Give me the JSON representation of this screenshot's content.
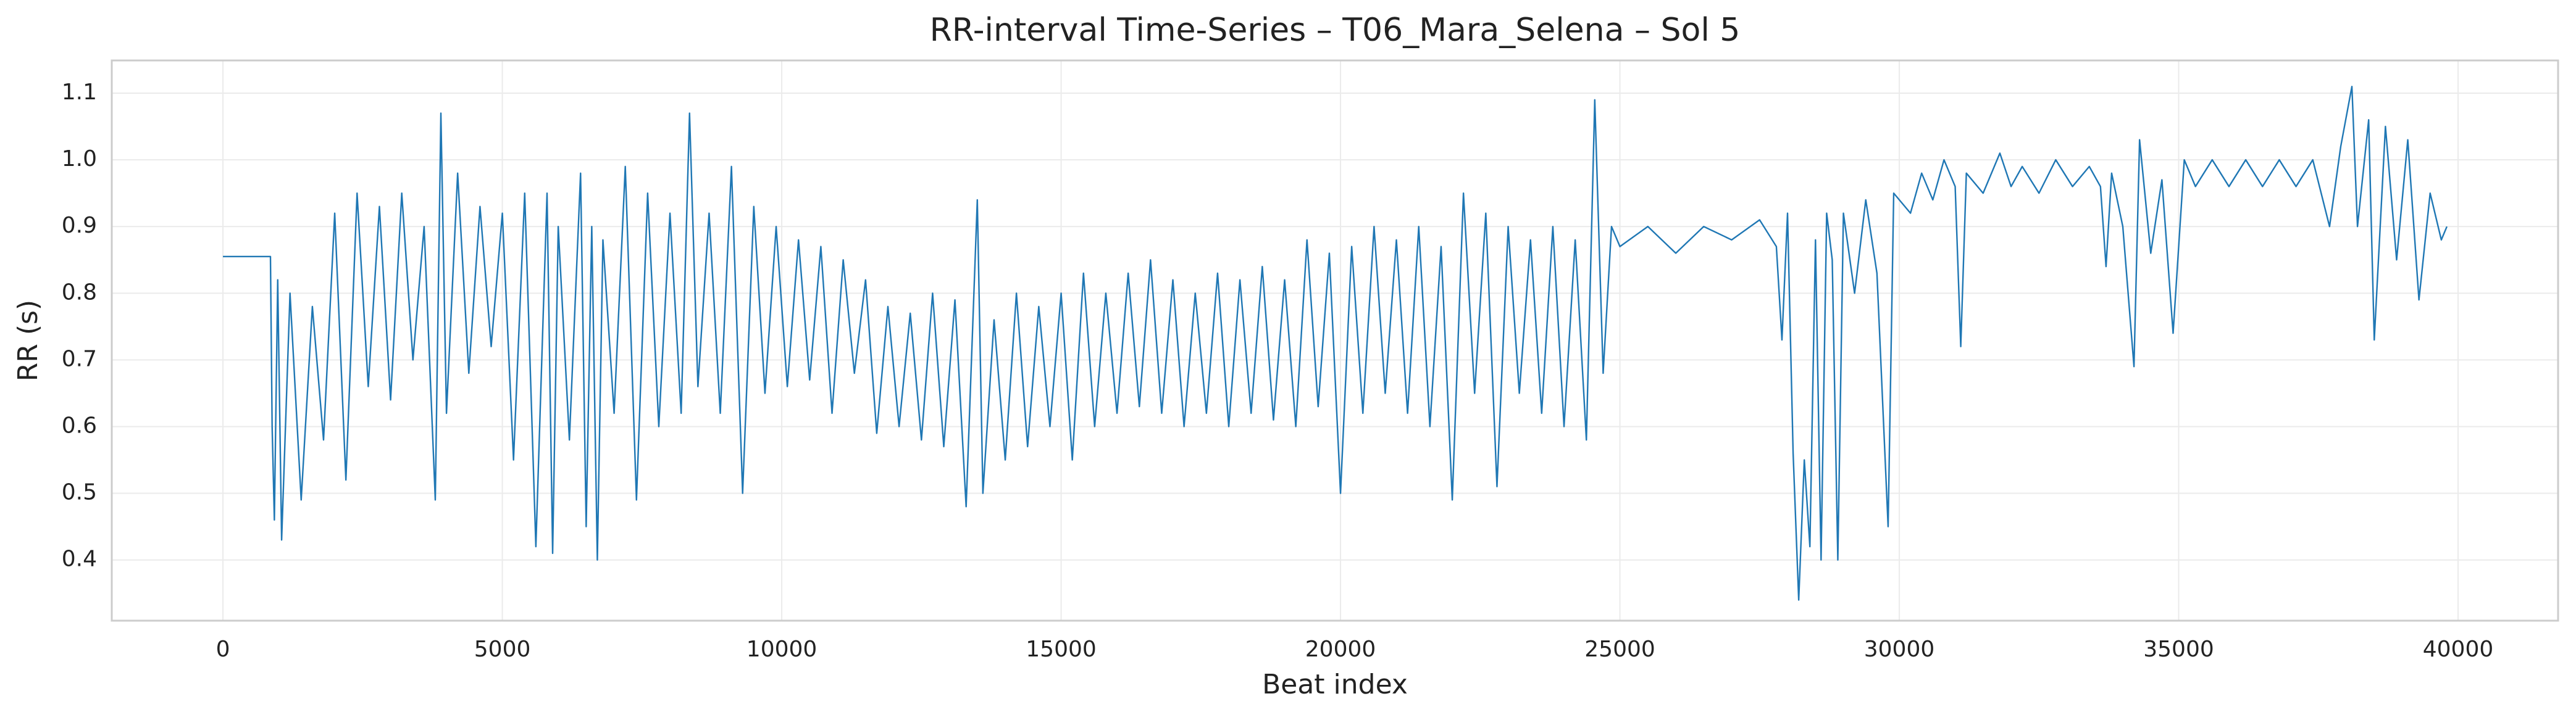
{
  "chart_data": {
    "type": "line",
    "title": "RR-interval Time-Series – T06_Mara_Selena – Sol 5",
    "xlabel": "Beat index",
    "ylabel": "RR (s)",
    "color": "#1f77b4",
    "grid": true,
    "xlim": [
      -1990,
      41790
    ],
    "ylim": [
      0.309,
      1.149
    ],
    "xticks": [
      0,
      5000,
      10000,
      15000,
      20000,
      25000,
      30000,
      35000,
      40000
    ],
    "yticks": [
      0.4,
      0.5,
      0.6,
      0.7,
      0.8,
      0.9,
      {
        "value": 1,
        "label": "1.0"
      },
      1.1
    ],
    "x": [
      0,
      850,
      880,
      920,
      980,
      1050,
      1200,
      1400,
      1600,
      1800,
      2000,
      2200,
      2400,
      2600,
      2800,
      3000,
      3200,
      3400,
      3600,
      3800,
      3900,
      4000,
      4200,
      4400,
      4600,
      4800,
      5000,
      5200,
      5400,
      5600,
      5800,
      5900,
      6000,
      6200,
      6400,
      6500,
      6600,
      6700,
      6800,
      7000,
      7200,
      7400,
      7600,
      7800,
      8000,
      8200,
      8350,
      8500,
      8700,
      8900,
      9100,
      9300,
      9500,
      9700,
      9900,
      10100,
      10300,
      10500,
      10700,
      10900,
      11100,
      11300,
      11500,
      11700,
      11900,
      12100,
      12300,
      12500,
      12700,
      12900,
      13100,
      13300,
      13500,
      13600,
      13800,
      14000,
      14200,
      14400,
      14600,
      14800,
      15000,
      15200,
      15400,
      15600,
      15800,
      16000,
      16200,
      16400,
      16600,
      16800,
      17000,
      17200,
      17400,
      17600,
      17800,
      18000,
      18200,
      18400,
      18600,
      18800,
      19000,
      19200,
      19400,
      19600,
      19800,
      20000,
      20200,
      20400,
      20600,
      20800,
      21000,
      21200,
      21400,
      21600,
      21800,
      22000,
      22200,
      22400,
      22600,
      22800,
      23000,
      23200,
      23400,
      23600,
      23800,
      24000,
      24200,
      24400,
      24550,
      24700,
      24850,
      25000,
      25500,
      26000,
      26500,
      27000,
      27500,
      27800,
      27900,
      28000,
      28100,
      28200,
      28300,
      28400,
      28500,
      28600,
      28700,
      28800,
      28900,
      29000,
      29200,
      29400,
      29600,
      29800,
      29900,
      30200,
      30400,
      30600,
      30800,
      31000,
      31100,
      31200,
      31500,
      31800,
      32000,
      32200,
      32500,
      32800,
      33100,
      33400,
      33600,
      33700,
      33800,
      34000,
      34200,
      34300,
      34500,
      34700,
      34900,
      35100,
      35300,
      35600,
      35900,
      36200,
      36500,
      36800,
      37100,
      37400,
      37700,
      37900,
      38100,
      38200,
      38400,
      38500,
      38700,
      38900,
      39100,
      39300,
      39500,
      39700,
      39800
    ],
    "values": [
      0.855,
      0.855,
      0.6,
      0.46,
      0.82,
      0.43,
      0.8,
      0.49,
      0.78,
      0.58,
      0.92,
      0.52,
      0.95,
      0.66,
      0.93,
      0.64,
      0.95,
      0.7,
      0.9,
      0.49,
      1.07,
      0.62,
      0.98,
      0.68,
      0.93,
      0.72,
      0.92,
      0.55,
      0.95,
      0.42,
      0.95,
      0.41,
      0.9,
      0.58,
      0.98,
      0.45,
      0.9,
      0.4,
      0.88,
      0.62,
      0.99,
      0.49,
      0.95,
      0.6,
      0.92,
      0.62,
      1.07,
      0.66,
      0.92,
      0.62,
      0.99,
      0.5,
      0.93,
      0.65,
      0.9,
      0.66,
      0.88,
      0.67,
      0.87,
      0.62,
      0.85,
      0.68,
      0.82,
      0.59,
      0.78,
      0.6,
      0.77,
      0.58,
      0.8,
      0.57,
      0.79,
      0.48,
      0.94,
      0.5,
      0.76,
      0.55,
      0.8,
      0.57,
      0.78,
      0.6,
      0.8,
      0.55,
      0.83,
      0.6,
      0.8,
      0.62,
      0.83,
      0.63,
      0.85,
      0.62,
      0.82,
      0.6,
      0.8,
      0.62,
      0.83,
      0.6,
      0.82,
      0.62,
      0.84,
      0.61,
      0.82,
      0.6,
      0.88,
      0.63,
      0.86,
      0.5,
      0.87,
      0.62,
      0.9,
      0.65,
      0.88,
      0.62,
      0.9,
      0.6,
      0.87,
      0.49,
      0.95,
      0.65,
      0.92,
      0.51,
      0.9,
      0.65,
      0.88,
      0.62,
      0.9,
      0.6,
      0.88,
      0.58,
      1.09,
      0.68,
      0.9,
      0.87,
      0.9,
      0.86,
      0.9,
      0.88,
      0.91,
      0.87,
      0.73,
      0.92,
      0.56,
      0.34,
      0.55,
      0.42,
      0.88,
      0.4,
      0.92,
      0.85,
      0.4,
      0.92,
      0.8,
      0.94,
      0.83,
      0.45,
      0.95,
      0.92,
      0.98,
      0.94,
      1.0,
      0.96,
      0.72,
      0.98,
      0.95,
      1.01,
      0.96,
      0.99,
      0.95,
      1.0,
      0.96,
      0.99,
      0.96,
      0.84,
      0.98,
      0.9,
      0.69,
      1.03,
      0.86,
      0.97,
      0.74,
      1.0,
      0.96,
      1.0,
      0.96,
      1.0,
      0.96,
      1.0,
      0.96,
      1.0,
      0.9,
      1.02,
      1.11,
      0.9,
      1.06,
      0.73,
      1.05,
      0.85,
      1.03,
      0.79,
      0.95,
      0.88,
      0.9
    ]
  }
}
